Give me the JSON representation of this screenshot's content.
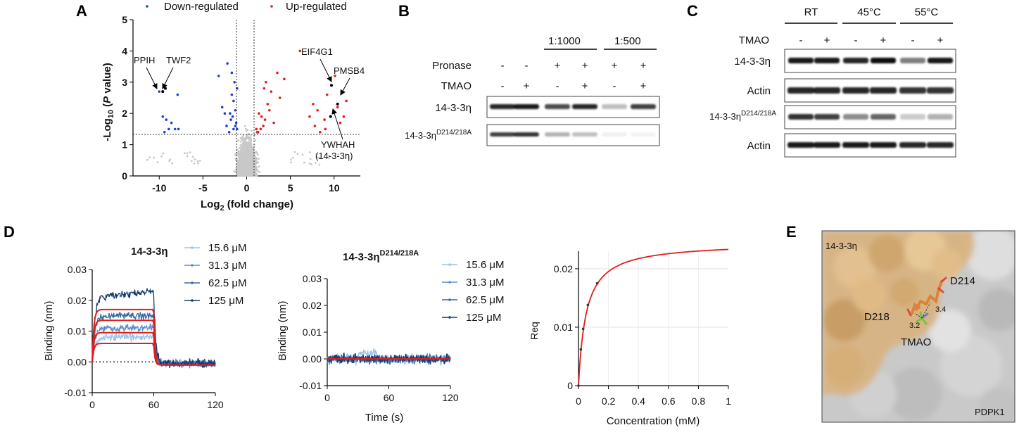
{
  "panels": {
    "A": "A",
    "B": "B",
    "C": "C",
    "D": "D",
    "E": "E"
  },
  "colors": {
    "down": "#1f3fd6",
    "up": "#e01e1e",
    "ns": "#c8c8c8",
    "fit": "#e01e1e",
    "c15": "#9cc3ea",
    "c31": "#5d8fc7",
    "c62": "#3a6a9e",
    "c125": "#123c73"
  },
  "panelA": {
    "legend_down": "Down-regulated",
    "legend_up": "Up-regulated",
    "ylabel_prefix": "-Log",
    "ylabel_sub": "10",
    "ylabel_open": " (",
    "ylabel_italic": "P",
    "ylabel_suffix": " value)",
    "xlabel_prefix": "Log",
    "xlabel_sub": "2",
    "xlabel_suffix": " (fold change)",
    "xticks": [
      "-10",
      "-5",
      "0",
      "5",
      "10"
    ],
    "yticks": [
      "0",
      "1",
      "2",
      "3",
      "4",
      "5"
    ],
    "labels": {
      "ppih": "PPIH",
      "twf2": "TWF2",
      "eif4g1": "EIF4G1",
      "pmsb4": "PMSB4",
      "ywhah": "YWHAH",
      "ywhah2": "(14-3-3η)"
    }
  },
  "panelB": {
    "dil1": "1:1000",
    "dil2": "1:500",
    "row_pronase": "Pronase",
    "row_tmao": "TMAO",
    "pronase": [
      "-",
      "-",
      "+",
      "+",
      "+",
      "+"
    ],
    "tmao": [
      "-",
      "+",
      "-",
      "+",
      "-",
      "+"
    ],
    "blot1": "14-3-3η",
    "blot2_base": "14-3-3η",
    "blot2_sup": "D214/218A"
  },
  "panelC": {
    "temps": [
      "RT",
      "45°C",
      "55°C"
    ],
    "row_tmao": "TMAO",
    "tmao": [
      "-",
      "+",
      "-",
      "+",
      "-",
      "+"
    ],
    "blot1": "14-3-3η",
    "blot2": "Actin",
    "blot3_base": "14-3-3η",
    "blot3_sup": "D214/218A",
    "blot4": "Actin"
  },
  "panelD": {
    "left_title": "14-3-3η",
    "mid_title_base": "14-3-3η",
    "mid_title_sup": "D214/218A",
    "ylabel": "Binding (nm)",
    "xlabel_mid": "Time (s)",
    "xlabel_right": "Concentration (mM)",
    "left_yticks": [
      "-0.01",
      "0.00",
      "0.01",
      "0.02",
      "0.03"
    ],
    "mid_yticks": [
      "-0.01",
      "0.00",
      "0.01",
      "0.02",
      "0.03"
    ],
    "time_ticks": [
      "0",
      "60",
      "120"
    ],
    "right_yticks": [
      "0",
      "0.01",
      "0.02"
    ],
    "right_xticks": [
      "0",
      "0.2",
      "0.4",
      "0.6",
      "0.8",
      "1"
    ],
    "right_ylabel": "Req",
    "legend": [
      "15.6 μM",
      "31.3 μM",
      "62.5 μM",
      "125 μM"
    ]
  },
  "panelE": {
    "protein1": "14-3-3η",
    "protein2": "PDPK1",
    "res1": "D214",
    "res2": "D218",
    "ligand": "TMAO",
    "d1": "3.4",
    "d2": "3.2"
  },
  "chart_data": [
    {
      "type": "scatter",
      "title": "",
      "xlabel": "Log2 (fold change)",
      "ylabel": "-Log10 (P value)",
      "xlim": [
        -13,
        13
      ],
      "ylim": [
        0,
        5
      ],
      "thresholds": {
        "y": 1.3,
        "x": [
          -1,
          1
        ]
      },
      "series": [
        {
          "name": "Down-regulated",
          "x": [
            -10.0,
            -9.6,
            -9.3,
            -7.9,
            -9.6,
            -9.2,
            -8.6,
            -8.9,
            -8.2,
            -9.4,
            -7.8,
            -3.2,
            -2.2,
            -2.8,
            -1.4,
            -1.7,
            -1.1,
            -1.5,
            -1.9,
            -1.6,
            -1.2,
            -1.3,
            -1.8,
            -2.3,
            -1.5,
            -2.0,
            -1.1,
            -1.7,
            -2.5,
            -1.3
          ],
          "y": [
            2.7,
            2.7,
            2.8,
            2.6,
            1.9,
            1.8,
            1.7,
            1.5,
            1.5,
            1.4,
            1.5,
            3.2,
            3.6,
            2.2,
            3.0,
            3.3,
            2.8,
            2.4,
            2.0,
            1.9,
            1.7,
            2.1,
            1.8,
            1.6,
            1.5,
            1.4,
            1.5,
            2.6,
            2.0,
            1.6
          ]
        },
        {
          "name": "Up-regulated",
          "x": [
            6.1,
            10.1,
            9.7,
            7.6,
            8.1,
            7.2,
            8.9,
            9.2,
            10.4,
            11.1,
            10.7,
            9.0,
            8.4,
            7.8,
            11.4,
            1.2,
            1.6,
            2.1,
            2.4,
            2.8,
            1.4,
            1.9,
            3.1,
            3.8,
            2.2,
            1.3,
            1.7,
            2.6,
            1.1,
            3.5,
            4.3,
            2.0
          ],
          "y": [
            4.0,
            3.2,
            2.9,
            2.3,
            2.1,
            1.9,
            1.8,
            2.6,
            2.2,
            1.9,
            1.7,
            1.5,
            1.4,
            1.6,
            2.4,
            1.4,
            1.5,
            1.8,
            2.3,
            2.7,
            2.0,
            1.6,
            1.7,
            2.5,
            3.0,
            1.4,
            1.9,
            2.1,
            1.5,
            3.3,
            3.1,
            2.8
          ]
        }
      ]
    },
    {
      "type": "line",
      "title": "14-3-3η",
      "xlabel": "",
      "ylabel": "Binding (nm)",
      "xlim": [
        0,
        120
      ],
      "ylim": [
        -0.01,
        0.03
      ],
      "fit_plateaus": [
        0.006,
        0.0095,
        0.0135,
        0.017
      ],
      "observed_plateaus": [
        0.008,
        0.011,
        0.015,
        0.021
      ],
      "series": [
        {
          "name": "15.6 μM"
        },
        {
          "name": "31.3 μM"
        },
        {
          "name": "62.5 μM"
        },
        {
          "name": "125 μM"
        }
      ]
    },
    {
      "type": "line",
      "title": "14-3-3ηD214/218A",
      "xlabel": "Time (s)",
      "ylabel": "Binding (nm)",
      "xlim": [
        0,
        120
      ],
      "ylim": [
        -0.01,
        0.03
      ],
      "series": [
        {
          "name": "15.6 μM"
        },
        {
          "name": "31.3 μM"
        },
        {
          "name": "62.5 μM"
        },
        {
          "name": "125 μM"
        }
      ]
    },
    {
      "type": "line",
      "title": "",
      "xlabel": "Concentration (mM)",
      "ylabel": "Req",
      "xlim": [
        0,
        1
      ],
      "ylim": [
        0,
        0.023
      ],
      "x": [
        0.0,
        0.0156,
        0.03125,
        0.0625,
        0.125
      ],
      "y": [
        0.0,
        0.0062,
        0.0097,
        0.0138,
        0.0175
      ],
      "fit": {
        "Rmax": 0.0245,
        "Kd": 0.051
      }
    }
  ]
}
